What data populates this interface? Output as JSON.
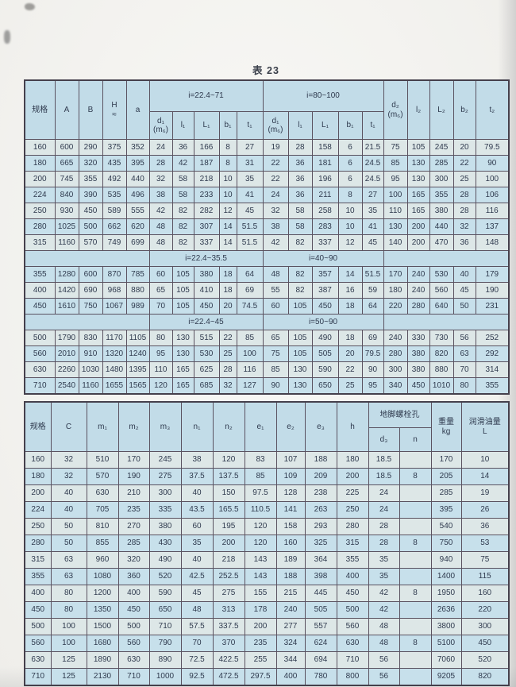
{
  "page": {
    "title": "表 23"
  },
  "table1": {
    "headers": {
      "spec": "规格",
      "A": "A",
      "B": "B",
      "H": "H\n≈",
      "a": "a",
      "group1": "i=22.4~71",
      "group2": "i=80~100",
      "sub1": [
        "d₁\n(m₆)",
        "l₁",
        "L₁",
        "b₁",
        "t₁"
      ],
      "right": [
        "d₂\n(m₆)",
        "l₂",
        "L₂",
        "b₂",
        "t₂"
      ]
    },
    "sections": [
      {
        "band": null,
        "rows": [
          [
            "160",
            "600",
            "290",
            "375",
            "352",
            "24",
            "36",
            "166",
            "8",
            "27",
            "19",
            "28",
            "158",
            "6",
            "21.5",
            "75",
            "105",
            "245",
            "20",
            "79.5"
          ],
          [
            "180",
            "665",
            "320",
            "435",
            "395",
            "28",
            "42",
            "187",
            "8",
            "31",
            "22",
            "36",
            "181",
            "6",
            "24.5",
            "85",
            "130",
            "285",
            "22",
            "90"
          ],
          [
            "200",
            "745",
            "355",
            "492",
            "440",
            "32",
            "58",
            "218",
            "10",
            "35",
            "22",
            "36",
            "196",
            "6",
            "24.5",
            "95",
            "130",
            "300",
            "25",
            "100"
          ],
          [
            "224",
            "840",
            "390",
            "535",
            "496",
            "38",
            "58",
            "233",
            "10",
            "41",
            "24",
            "36",
            "211",
            "8",
            "27",
            "100",
            "165",
            "355",
            "28",
            "106"
          ],
          [
            "250",
            "930",
            "450",
            "589",
            "555",
            "42",
            "82",
            "282",
            "12",
            "45",
            "32",
            "58",
            "258",
            "10",
            "35",
            "110",
            "165",
            "380",
            "28",
            "116"
          ],
          [
            "280",
            "1025",
            "500",
            "662",
            "620",
            "48",
            "82",
            "307",
            "14",
            "51.5",
            "38",
            "58",
            "283",
            "10",
            "41",
            "130",
            "200",
            "440",
            "32",
            "137"
          ],
          [
            "315",
            "1160",
            "570",
            "749",
            "699",
            "48",
            "82",
            "337",
            "14",
            "51.5",
            "42",
            "82",
            "337",
            "12",
            "45",
            "140",
            "200",
            "470",
            "36",
            "148"
          ]
        ]
      },
      {
        "band": [
          "i=22.4~35.5",
          "i=40~90"
        ],
        "rows": [
          [
            "355",
            "1280",
            "600",
            "870",
            "785",
            "60",
            "105",
            "380",
            "18",
            "64",
            "48",
            "82",
            "357",
            "14",
            "51.5",
            "170",
            "240",
            "530",
            "40",
            "179"
          ],
          [
            "400",
            "1420",
            "690",
            "968",
            "880",
            "65",
            "105",
            "410",
            "18",
            "69",
            "55",
            "82",
            "387",
            "16",
            "59",
            "180",
            "240",
            "560",
            "45",
            "190"
          ],
          [
            "450",
            "1610",
            "750",
            "1067",
            "989",
            "70",
            "105",
            "450",
            "20",
            "74.5",
            "60",
            "105",
            "450",
            "18",
            "64",
            "220",
            "280",
            "640",
            "50",
            "231"
          ]
        ]
      },
      {
        "band": [
          "i=22.4~45",
          "i=50~90"
        ],
        "rows": [
          [
            "500",
            "1790",
            "830",
            "1170",
            "1105",
            "80",
            "130",
            "515",
            "22",
            "85",
            "65",
            "105",
            "490",
            "18",
            "69",
            "240",
            "330",
            "730",
            "56",
            "252"
          ],
          [
            "560",
            "2010",
            "910",
            "1320",
            "1240",
            "95",
            "130",
            "530",
            "25",
            "100",
            "75",
            "105",
            "505",
            "20",
            "79.5",
            "280",
            "380",
            "820",
            "63",
            "292"
          ],
          [
            "630",
            "2260",
            "1030",
            "1480",
            "1395",
            "110",
            "165",
            "625",
            "28",
            "116",
            "85",
            "130",
            "590",
            "22",
            "90",
            "300",
            "380",
            "880",
            "70",
            "314"
          ],
          [
            "710",
            "2540",
            "1160",
            "1655",
            "1565",
            "120",
            "165",
            "685",
            "32",
            "127",
            "90",
            "130",
            "650",
            "25",
            "95",
            "340",
            "450",
            "1010",
            "80",
            "355"
          ]
        ]
      }
    ]
  },
  "table2": {
    "headers": {
      "spec": "规格",
      "cols": [
        "C",
        "m₁",
        "m₂",
        "m₃",
        "n₁",
        "n₂",
        "e₁",
        "e₂",
        "e₃",
        "h"
      ],
      "bolt_group": "地脚螺栓孔",
      "bolt_sub": [
        "d₃",
        "n"
      ],
      "weight": "重量\nkg",
      "oil": "润滑油量\nL"
    },
    "rows": [
      [
        "160",
        "32",
        "510",
        "170",
        "245",
        "38",
        "120",
        "83",
        "107",
        "188",
        "180",
        "18.5",
        "",
        "170",
        "10"
      ],
      [
        "180",
        "32",
        "570",
        "190",
        "275",
        "37.5",
        "137.5",
        "85",
        "109",
        "209",
        "200",
        "18.5",
        "8",
        "205",
        "14"
      ],
      [
        "200",
        "40",
        "630",
        "210",
        "300",
        "40",
        "150",
        "97.5",
        "128",
        "238",
        "225",
        "24",
        "",
        "285",
        "19"
      ],
      [
        "224",
        "40",
        "705",
        "235",
        "335",
        "43.5",
        "165.5",
        "110.5",
        "141",
        "263",
        "250",
        "24",
        "",
        "395",
        "26"
      ],
      [
        "250",
        "50",
        "810",
        "270",
        "380",
        "60",
        "195",
        "120",
        "158",
        "293",
        "280",
        "28",
        "",
        "540",
        "36"
      ],
      [
        "280",
        "50",
        "855",
        "285",
        "430",
        "35",
        "200",
        "120",
        "160",
        "325",
        "315",
        "28",
        "8",
        "750",
        "53"
      ],
      [
        "315",
        "63",
        "960",
        "320",
        "490",
        "40",
        "218",
        "143",
        "189",
        "364",
        "355",
        "35",
        "",
        "940",
        "75"
      ],
      [
        "355",
        "63",
        "1080",
        "360",
        "520",
        "42.5",
        "252.5",
        "143",
        "188",
        "398",
        "400",
        "35",
        "",
        "1400",
        "115"
      ],
      [
        "400",
        "80",
        "1200",
        "400",
        "590",
        "45",
        "275",
        "155",
        "215",
        "445",
        "450",
        "42",
        "8",
        "1950",
        "160"
      ],
      [
        "450",
        "80",
        "1350",
        "450",
        "650",
        "48",
        "313",
        "178",
        "240",
        "505",
        "500",
        "42",
        "",
        "2636",
        "220"
      ],
      [
        "500",
        "100",
        "1500",
        "500",
        "710",
        "57.5",
        "337.5",
        "200",
        "277",
        "557",
        "560",
        "48",
        "",
        "3800",
        "300"
      ],
      [
        "560",
        "100",
        "1680",
        "560",
        "790",
        "70",
        "370",
        "235",
        "324",
        "624",
        "630",
        "48",
        "8",
        "5100",
        "450"
      ],
      [
        "630",
        "125",
        "1890",
        "630",
        "890",
        "72.5",
        "422.5",
        "255",
        "344",
        "694",
        "710",
        "56",
        "",
        "7060",
        "520"
      ],
      [
        "710",
        "125",
        "2130",
        "710",
        "1000",
        "92.5",
        "472.5",
        "297.5",
        "400",
        "780",
        "800",
        "56",
        "",
        "9205",
        "820"
      ]
    ]
  }
}
